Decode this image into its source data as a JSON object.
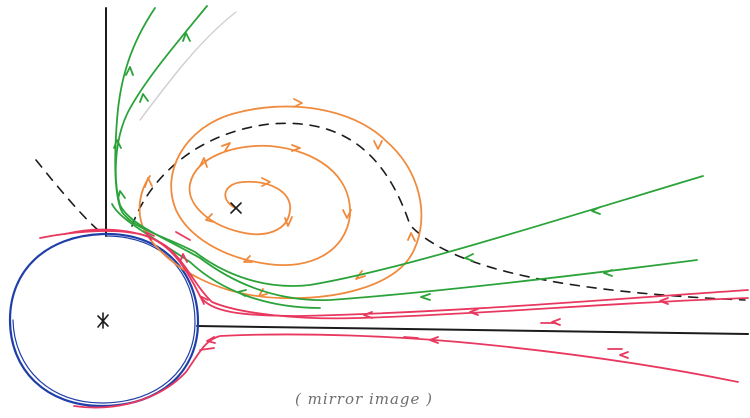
{
  "caption": "( mirror image )",
  "colors": {
    "wall": "#1c1c1c",
    "cylinder": "#1f3fa8",
    "vortex": "#f08a3c",
    "outer_streamlines": "#2ba33a",
    "lower_streamlines": "#e8385f",
    "separatrix": "#1c1c1c"
  },
  "icons": {
    "cylinder_center": "cross-mark",
    "vortex_center": "cross-mark"
  }
}
